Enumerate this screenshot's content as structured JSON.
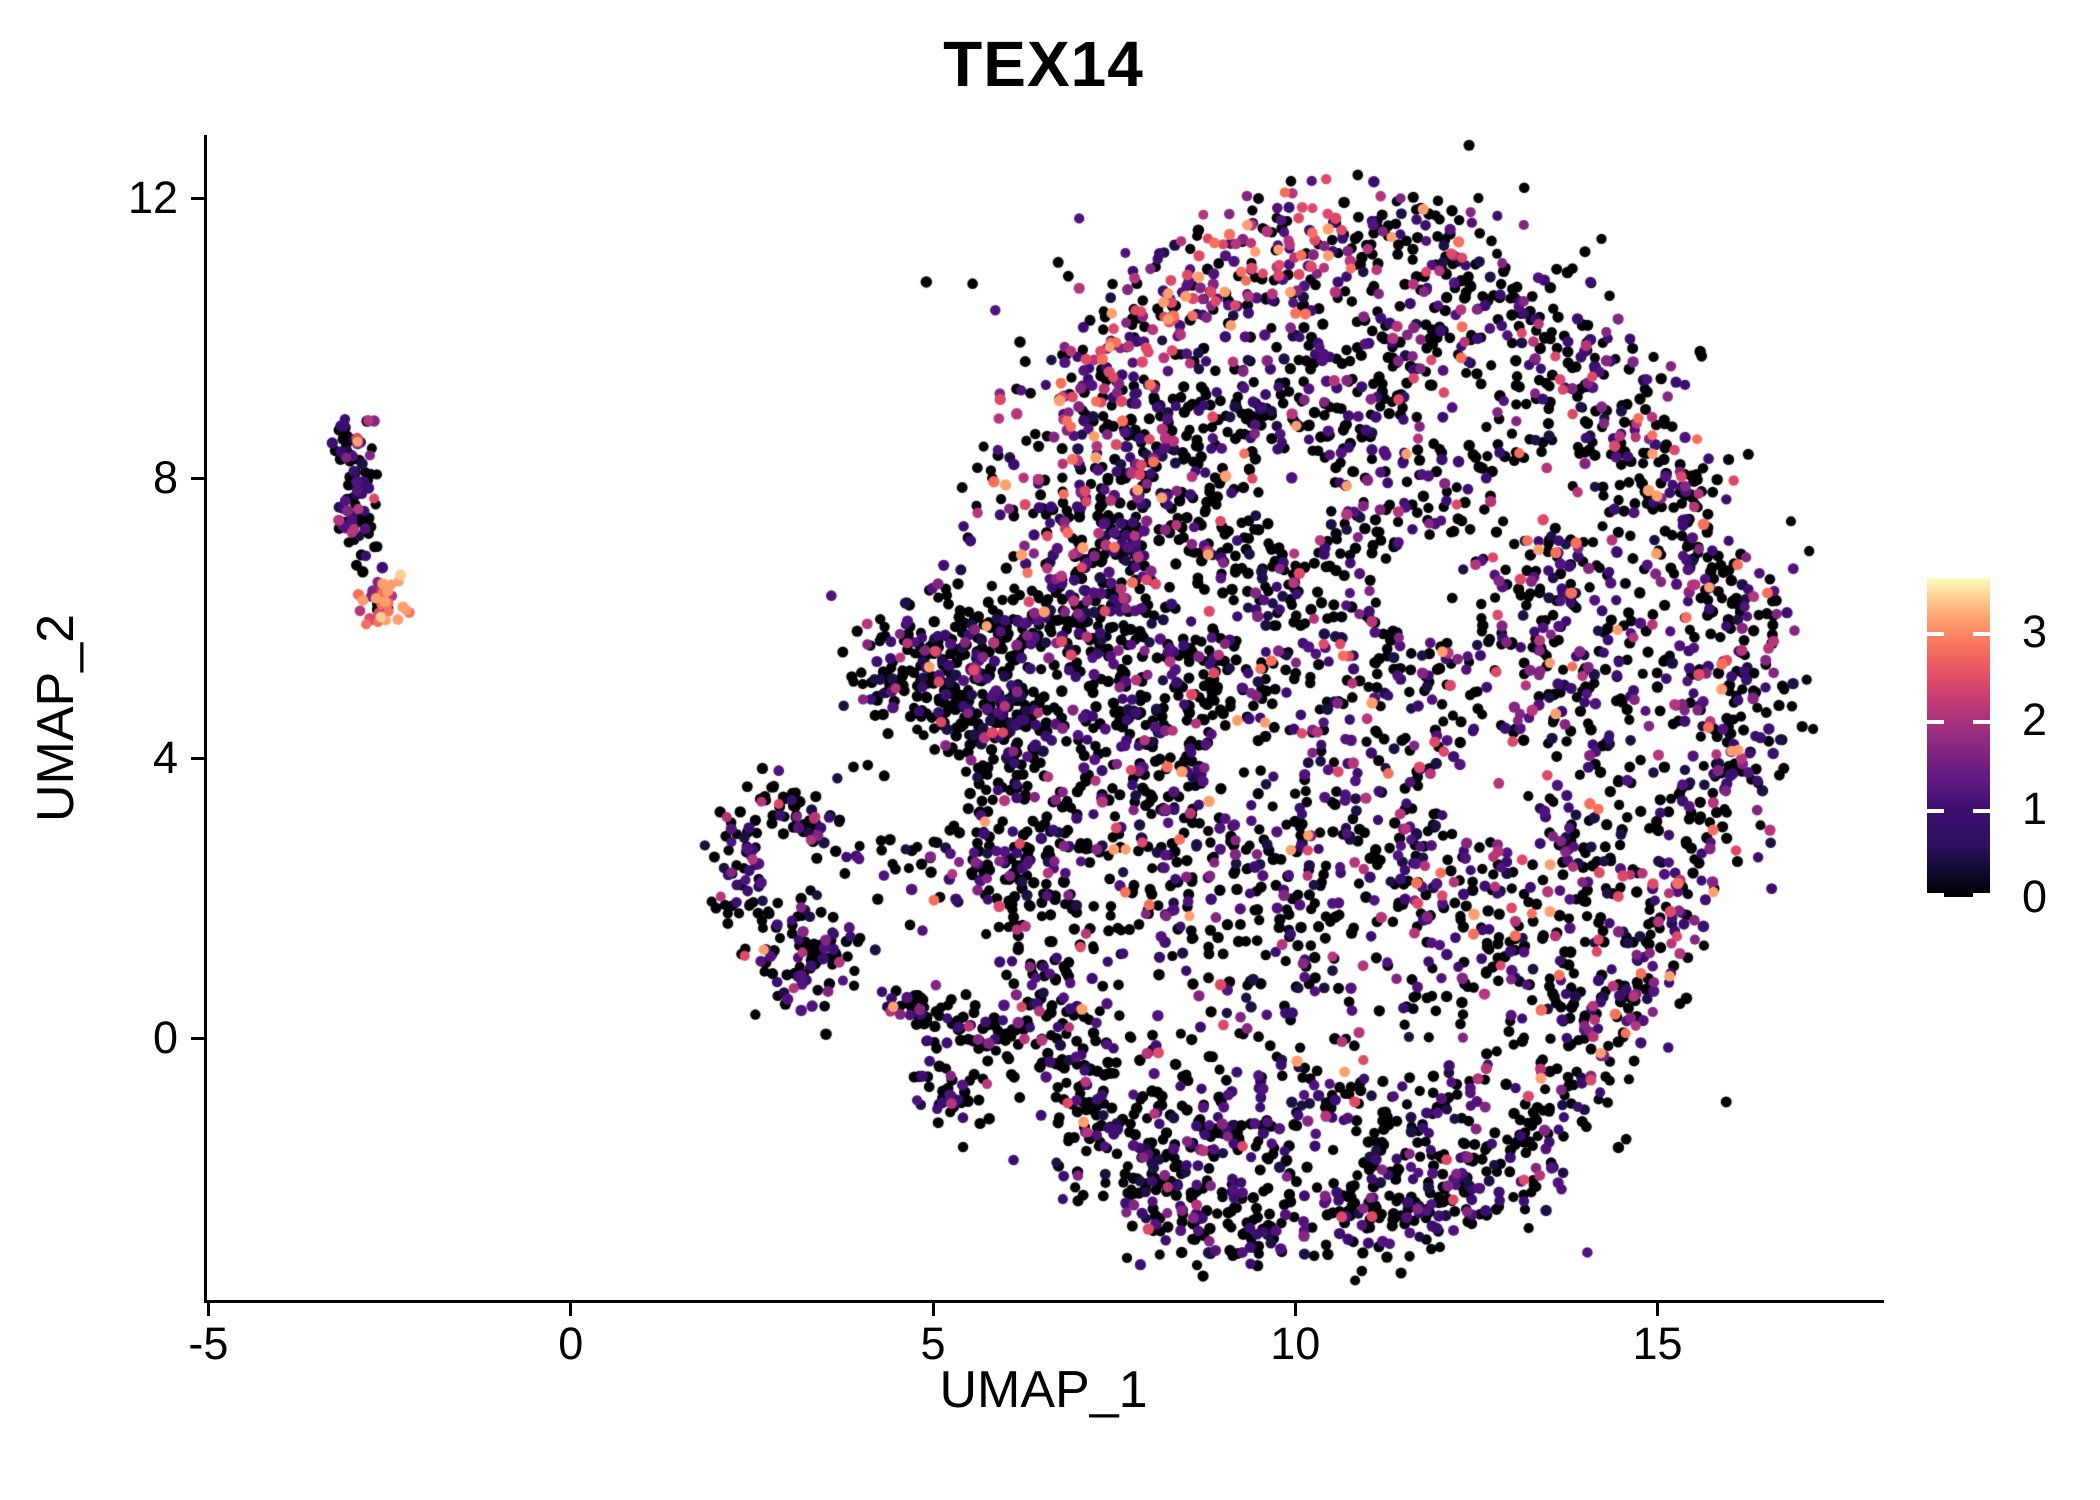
{
  "title": "TEX14",
  "axes": {
    "x": {
      "label": "UMAP_1",
      "ticks": [
        -5,
        0,
        5,
        10,
        15
      ],
      "range": [
        -5.02,
        18.07
      ]
    },
    "y": {
      "label": "UMAP_2",
      "ticks": [
        0,
        4,
        8,
        12
      ],
      "range": [
        -3.77,
        12.9
      ]
    }
  },
  "legend": {
    "ticks": [
      0,
      1,
      2,
      3
    ],
    "vmin": 0,
    "vmax": 3.61,
    "colormap": "magma",
    "gradient_stops": [
      [
        0,
        "#000004"
      ],
      [
        0.07,
        "#0c0927"
      ],
      [
        0.16,
        "#2c115f"
      ],
      [
        0.27,
        "#3b0f70"
      ],
      [
        0.38,
        "#641a80"
      ],
      [
        0.48,
        "#8c2981"
      ],
      [
        0.58,
        "#b5367a"
      ],
      [
        0.68,
        "#de4968"
      ],
      [
        0.78,
        "#f7705c"
      ],
      [
        0.87,
        "#fe9f6d"
      ],
      [
        0.94,
        "#fecf92"
      ],
      [
        1,
        "#fcfdbf"
      ]
    ]
  },
  "chart_data": {
    "type": "scatter",
    "title": "TEX14",
    "xlabel": "UMAP_1",
    "ylabel": "UMAP_2",
    "grid": false,
    "legend_position": "right",
    "point_radius_px": 5.4,
    "seed": 20240614,
    "palette": [
      "#000004",
      "#1c1044",
      "#3b0f70",
      "#51127c",
      "#822681",
      "#b5367a",
      "#de4968",
      "#f7705c",
      "#fe9f6d",
      "#fecf92",
      "#fcfdbf"
    ],
    "color_profiles": {
      "darkest": [
        [
          0,
          0.7
        ],
        [
          1,
          0.06
        ],
        [
          2,
          0.1
        ],
        [
          3,
          0.06
        ],
        [
          4,
          0.045
        ],
        [
          5,
          0.02
        ],
        [
          6,
          0.01
        ],
        [
          8,
          0.005
        ]
      ],
      "dark": [
        [
          0,
          0.54
        ],
        [
          1,
          0.07
        ],
        [
          2,
          0.13
        ],
        [
          3,
          0.09
        ],
        [
          4,
          0.07
        ],
        [
          5,
          0.05
        ],
        [
          6,
          0.025
        ],
        [
          7,
          0.012
        ],
        [
          8,
          0.008
        ]
      ],
      "warmband": [
        [
          0,
          0.27
        ],
        [
          2,
          0.09
        ],
        [
          3,
          0.08
        ],
        [
          4,
          0.11
        ],
        [
          5,
          0.14
        ],
        [
          6,
          0.13
        ],
        [
          7,
          0.09
        ],
        [
          8,
          0.11
        ],
        [
          9,
          0.05
        ],
        [
          10,
          0.03
        ]
      ],
      "purpleblack": [
        [
          0,
          0.6
        ],
        [
          1,
          0.06
        ],
        [
          2,
          0.13
        ],
        [
          3,
          0.09
        ],
        [
          4,
          0.06
        ],
        [
          5,
          0.035
        ],
        [
          6,
          0.02
        ],
        [
          8,
          0.005
        ]
      ],
      "tipwarm": [
        [
          0,
          0.1
        ],
        [
          2,
          0.1
        ],
        [
          3,
          0.08
        ],
        [
          4,
          0.1
        ],
        [
          5,
          0.13
        ],
        [
          6,
          0.09
        ],
        [
          7,
          0.16
        ],
        [
          8,
          0.22
        ],
        [
          9,
          0.1
        ],
        [
          10,
          0.02
        ]
      ],
      "bottomlobe": [
        [
          0,
          0.6
        ],
        [
          1,
          0.06
        ],
        [
          2,
          0.16
        ],
        [
          3,
          0.1
        ],
        [
          4,
          0.05
        ],
        [
          5,
          0.02
        ],
        [
          6,
          0.01
        ]
      ]
    },
    "voids": [
      [
        11.9,
        6.4,
        0.75,
        0.12
      ],
      [
        12.7,
        3.6,
        0.8,
        0.15
      ],
      [
        9.35,
        3.95,
        0.6,
        0.2
      ],
      [
        11.2,
        1.0,
        0.6,
        0.2
      ],
      [
        10.45,
        -1.65,
        0.5,
        0.18
      ],
      [
        8.6,
        6.3,
        0.5,
        0.3
      ],
      [
        13.5,
        7.8,
        0.6,
        0.25
      ],
      [
        10.05,
        7.7,
        0.55,
        0.3
      ],
      [
        12.2,
        8.9,
        0.5,
        0.3
      ]
    ],
    "clusters": [
      {
        "name": "left-islet-body",
        "kind": "path",
        "path": [
          [
            -2.95,
            8.8
          ],
          [
            -3.08,
            8.35
          ],
          [
            -2.9,
            7.85
          ],
          [
            -3.0,
            7.35
          ],
          [
            -2.8,
            6.95
          ]
        ],
        "jitter": 0.16,
        "n": 95,
        "profile": "purpleblack",
        "voidable": false
      },
      {
        "name": "left-islet-warm-tip",
        "kind": "gauss",
        "center": [
          -2.62,
          6.22
        ],
        "sigma": [
          0.18,
          0.2
        ],
        "n": 40,
        "profile": "tipwarm",
        "voidable": false
      },
      {
        "name": "hook-top-arc",
        "kind": "path",
        "path": [
          [
            2.45,
            3.38
          ],
          [
            2.95,
            3.45
          ],
          [
            3.3,
            3.15
          ],
          [
            3.3,
            2.7
          ]
        ],
        "jitter": 0.2,
        "n": 55,
        "profile": "purpleblack",
        "voidable": false
      },
      {
        "name": "hook-left-arc",
        "kind": "path",
        "path": [
          [
            2.28,
            3.05
          ],
          [
            2.22,
            2.55
          ],
          [
            2.4,
            2.05
          ],
          [
            2.7,
            1.7
          ]
        ],
        "jitter": 0.2,
        "n": 55,
        "profile": "purpleblack",
        "voidable": false
      },
      {
        "name": "hook-bottom-blob",
        "kind": "gauss",
        "center": [
          3.2,
          1.2
        ],
        "sigma": [
          0.42,
          0.42
        ],
        "n": 95,
        "profile": "purpleblack",
        "voidable": false
      },
      {
        "name": "hook-right-arm",
        "kind": "path",
        "path": [
          [
            3.65,
            2.55
          ],
          [
            4.6,
            2.5
          ],
          [
            5.5,
            2.3
          ],
          [
            6.05,
            2.15
          ]
        ],
        "jitter": 0.26,
        "n": 40,
        "profile": "purpleblack",
        "voidable": false
      },
      {
        "name": "small-strip",
        "kind": "path",
        "path": [
          [
            4.45,
            0.5
          ],
          [
            5.1,
            0.32
          ],
          [
            5.75,
            0.12
          ],
          [
            6.25,
            0.05
          ]
        ],
        "jitter": 0.2,
        "n": 80,
        "profile": "purpleblack",
        "voidable": false
      },
      {
        "name": "small-strip-tail",
        "kind": "gauss",
        "center": [
          5.3,
          -0.78
        ],
        "sigma": [
          0.3,
          0.26
        ],
        "n": 40,
        "profile": "purpleblack",
        "voidable": false
      },
      {
        "name": "rim-top-left-warm",
        "kind": "path",
        "path": [
          [
            6.35,
            8.0
          ],
          [
            7.2,
            9.3
          ],
          [
            8.3,
            10.45
          ],
          [
            9.6,
            11.35
          ],
          [
            10.6,
            11.65
          ]
        ],
        "jitter": 0.42,
        "n": 250,
        "profile": "warmband",
        "voidable": false
      },
      {
        "name": "rim-top-right",
        "kind": "path",
        "path": [
          [
            10.6,
            11.65
          ],
          [
            11.9,
            11.3
          ],
          [
            13.1,
            10.4
          ],
          [
            14.1,
            9.3
          ],
          [
            14.9,
            8.2
          ]
        ],
        "jitter": 0.45,
        "n": 220,
        "profile": "dark",
        "voidable": false
      },
      {
        "name": "rim-right",
        "kind": "path",
        "path": [
          [
            14.9,
            8.2
          ],
          [
            15.7,
            7.0
          ],
          [
            16.1,
            5.8
          ],
          [
            16.15,
            4.5
          ],
          [
            15.8,
            3.2
          ],
          [
            15.1,
            2.1
          ]
        ],
        "jitter": 0.4,
        "n": 250,
        "profile": "dark",
        "voidable": true
      },
      {
        "name": "rim-bottom-right",
        "kind": "path",
        "path": [
          [
            15.1,
            2.1
          ],
          [
            14.5,
            1.0
          ],
          [
            14.2,
            -0.1
          ],
          [
            13.5,
            -1.1
          ]
        ],
        "jitter": 0.38,
        "n": 130,
        "profile": "dark",
        "voidable": false
      },
      {
        "name": "rim-bottom-lobe",
        "kind": "path",
        "path": [
          [
            13.5,
            -1.1
          ],
          [
            12.7,
            -2.0
          ],
          [
            11.7,
            -2.45
          ],
          [
            10.6,
            -2.6
          ],
          [
            9.5,
            -2.9
          ],
          [
            8.55,
            -2.65
          ],
          [
            7.9,
            -2.1
          ],
          [
            7.35,
            -1.4
          ]
        ],
        "jitter": 0.36,
        "n": 270,
        "profile": "bottomlobe",
        "voidable": false
      },
      {
        "name": "rim-bottom-left-rise",
        "kind": "path",
        "path": [
          [
            7.35,
            -1.4
          ],
          [
            6.95,
            -0.5
          ],
          [
            6.7,
            0.5
          ],
          [
            6.5,
            1.5
          ]
        ],
        "jitter": 0.34,
        "n": 130,
        "profile": "darkest",
        "voidable": false
      },
      {
        "name": "rim-left",
        "kind": "path",
        "path": [
          [
            6.5,
            1.5
          ],
          [
            6.15,
            2.6
          ],
          [
            5.95,
            3.7
          ],
          [
            6.1,
            4.7
          ]
        ],
        "jitter": 0.38,
        "n": 160,
        "profile": "darkest",
        "voidable": false
      },
      {
        "name": "left-wedge-upper",
        "kind": "path",
        "path": [
          [
            4.15,
            5.3
          ],
          [
            4.9,
            5.45
          ],
          [
            5.7,
            5.6
          ],
          [
            6.5,
            5.8
          ],
          [
            7.2,
            5.95
          ]
        ],
        "jitter": 0.4,
        "n": 250,
        "profile": "darkest",
        "voidable": false
      },
      {
        "name": "left-wedge-lower",
        "kind": "path",
        "path": [
          [
            4.6,
            5.0
          ],
          [
            5.4,
            4.75
          ],
          [
            6.2,
            4.55
          ]
        ],
        "jitter": 0.32,
        "n": 120,
        "profile": "darkest",
        "voidable": false
      },
      {
        "name": "upper-left-inner-band",
        "kind": "path",
        "path": [
          [
            6.8,
            6.7
          ],
          [
            7.6,
            7.7
          ],
          [
            8.4,
            8.7
          ]
        ],
        "jitter": 0.5,
        "n": 190,
        "profile": "dark",
        "voidable": false
      },
      {
        "name": "fill-top",
        "kind": "gauss",
        "center": [
          10.8,
          9.4
        ],
        "sigma": [
          1.9,
          1.15
        ],
        "n": 420,
        "profile": "dark",
        "voidable": true
      },
      {
        "name": "fill-mid",
        "kind": "gauss",
        "center": [
          10.3,
          6.4
        ],
        "sigma": [
          2.2,
          1.5
        ],
        "n": 520,
        "profile": "dark",
        "voidable": true
      },
      {
        "name": "fill-mid-right",
        "kind": "gauss",
        "center": [
          13.9,
          5.6
        ],
        "sigma": [
          1.25,
          1.8
        ],
        "n": 360,
        "profile": "dark",
        "voidable": true
      },
      {
        "name": "fill-mid-left",
        "kind": "gauss",
        "center": [
          8.1,
          5.0
        ],
        "sigma": [
          1.2,
          1.6
        ],
        "n": 430,
        "profile": "darkest",
        "voidable": true
      },
      {
        "name": "fill-low-mid",
        "kind": "gauss",
        "center": [
          9.7,
          2.6
        ],
        "sigma": [
          2.0,
          1.3
        ],
        "n": 440,
        "profile": "dark",
        "voidable": true
      },
      {
        "name": "fill-low-right",
        "kind": "gauss",
        "center": [
          12.9,
          1.7
        ],
        "sigma": [
          1.3,
          1.15
        ],
        "n": 250,
        "profile": "dark",
        "voidable": true
      },
      {
        "name": "bottom-lobe-left",
        "kind": "gauss",
        "center": [
          9.2,
          -1.5
        ],
        "sigma": [
          1.1,
          0.75
        ],
        "n": 230,
        "profile": "bottomlobe",
        "voidable": true
      },
      {
        "name": "bottom-lobe-right",
        "kind": "gauss",
        "center": [
          11.5,
          -1.6
        ],
        "sigma": [
          1.0,
          0.7
        ],
        "n": 170,
        "profile": "bottomlobe",
        "voidable": true
      },
      {
        "name": "sparse-speckle",
        "kind": "ellipse",
        "center": [
          10.6,
          4.8
        ],
        "radius": [
          5.8,
          6.9
        ],
        "n": 430,
        "profile": "dark",
        "voidable": true
      }
    ],
    "extra_points": [
      [
        15.05,
        9.42,
        0
      ],
      [
        15.38,
        9.33,
        2
      ],
      [
        4.1,
        3.9,
        0
      ],
      [
        -2.87,
        6.66,
        0
      ],
      [
        -2.6,
        6.72,
        2
      ],
      [
        11.4,
        11.95,
        0
      ]
    ]
  }
}
